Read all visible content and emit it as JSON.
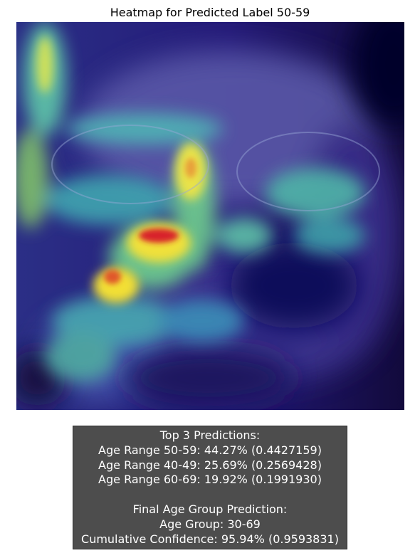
{
  "title": "Heatmap for Predicted Label 50-59",
  "heatmap": {
    "overlay": "jet colormap attention heatmap blended over face photograph",
    "colors": {
      "low": "#1e1070",
      "mid": "#4fd0c0",
      "high_yellow": "#f3e63a",
      "peak_red": "#d8242a"
    }
  },
  "predictions": {
    "header": "Top 3 Predictions:",
    "items": [
      "Age Range 50-59: 44.27% (0.4427159)",
      "Age Range 40-49: 25.69% (0.2569428)",
      "Age Range 60-69: 19.92% (0.1991930)"
    ]
  },
  "final": {
    "header": "Final Age Group Prediction:",
    "group": "Age Group: 30-69",
    "confidence": "Cumulative Confidence: 95.94% (0.9593831)"
  },
  "colors": {
    "box_bg": "#4d4d4d",
    "box_text": "#ffffff"
  }
}
